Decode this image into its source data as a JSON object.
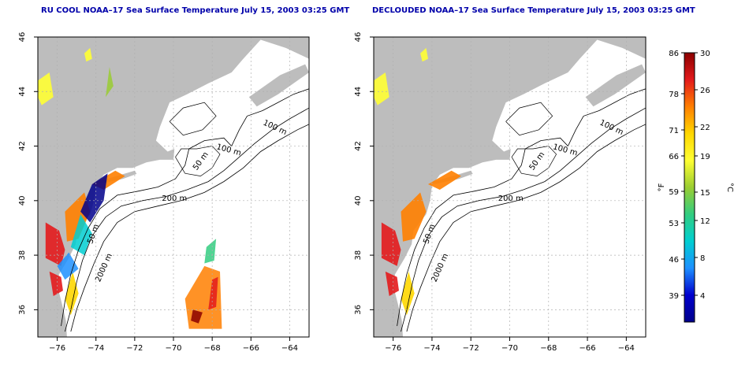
{
  "panels": [
    {
      "title": "RU COOL NOAA–17 Sea Surface Temperature July 15, 2003 03:25 GMT"
    },
    {
      "title": "DECLOUDED NOAA–17 Sea Surface Temperature July 15, 2003 03:25 GMT"
    }
  ],
  "axes": {
    "lon_ticks": [
      "−76",
      "−74",
      "−72",
      "−70",
      "−68",
      "−66",
      "−64"
    ],
    "lat_ticks": [
      "36",
      "38",
      "40",
      "42",
      "44",
      "46"
    ],
    "lon_range": [
      -77,
      -63
    ],
    "lat_range": [
      35,
      46
    ]
  },
  "contour_labels": [
    "100 m",
    "100 m",
    "50 m",
    "200 m",
    "50 m",
    "2000 m"
  ],
  "colorbar": {
    "fahrenheit_ticks": [
      "86",
      "78",
      "71",
      "66",
      "59",
      "53",
      "46",
      "39"
    ],
    "celsius_ticks": [
      "30",
      "26",
      "22",
      "19",
      "15",
      "12",
      "8",
      "4"
    ],
    "unit_f": "°F",
    "unit_c": "°C",
    "colors": [
      "#8b0000",
      "#e31a1c",
      "#ff7f00",
      "#ffd700",
      "#ffff33",
      "#9acd32",
      "#32cd80",
      "#00ced1",
      "#1e90ff",
      "#0000cd",
      "#00008b"
    ]
  },
  "colors": {
    "land": "#bdbdbd",
    "ocean": "#ffffff",
    "title": "#0000aa",
    "grid": "#b0b0b0"
  }
}
